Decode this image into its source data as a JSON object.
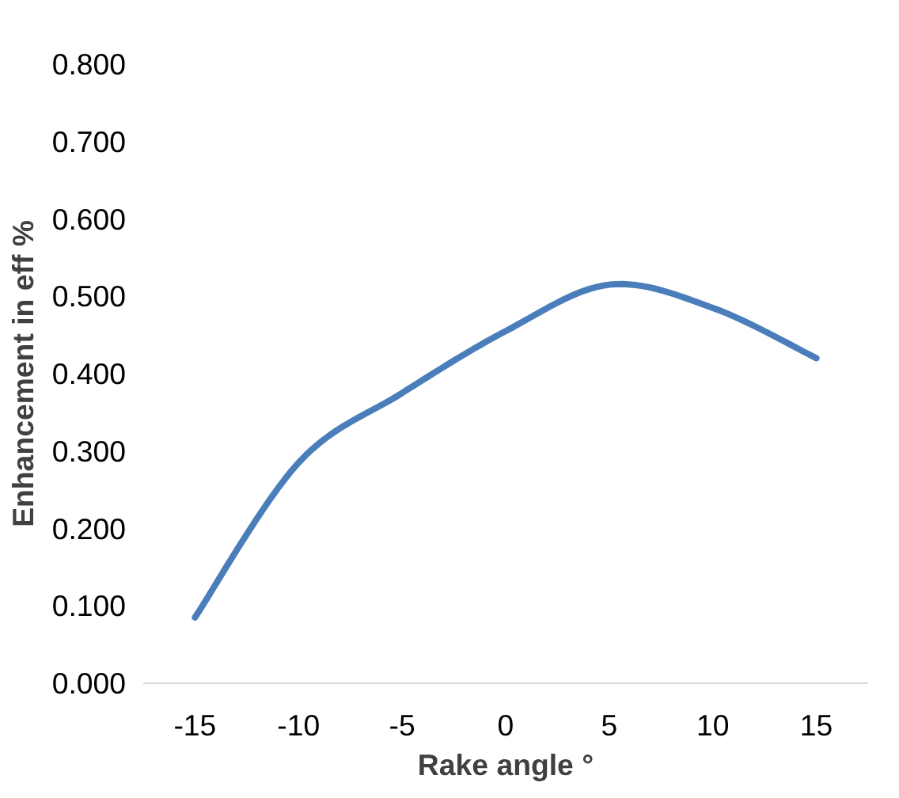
{
  "chart_data": {
    "type": "line",
    "xlabel": "Rake angle °",
    "ylabel": "Enhancement in eff %",
    "categories": [
      "-15",
      "-10",
      "-5",
      "0",
      "5",
      "10",
      "15"
    ],
    "series": [
      {
        "color": "#4a7ebb",
        "values": [
          0.085,
          0.285,
          0.375,
          0.455,
          0.515,
          0.485,
          0.42
        ]
      }
    ],
    "ylim": [
      0,
      0.8
    ],
    "yticks": [
      {
        "value": 0,
        "label": "0.000"
      },
      {
        "value": 0.1,
        "label": "0.100"
      },
      {
        "value": 0.2,
        "label": "0.200"
      },
      {
        "value": 0.3,
        "label": "0.300"
      },
      {
        "value": 0.4,
        "label": "0.400"
      },
      {
        "value": 0.5,
        "label": "0.500"
      },
      {
        "value": 0.6,
        "label": "0.600"
      },
      {
        "value": 0.7,
        "label": "0.700"
      },
      {
        "value": 0.8,
        "label": "0.800"
      }
    ],
    "grid": false,
    "marker": "none",
    "line_style": "solid"
  }
}
